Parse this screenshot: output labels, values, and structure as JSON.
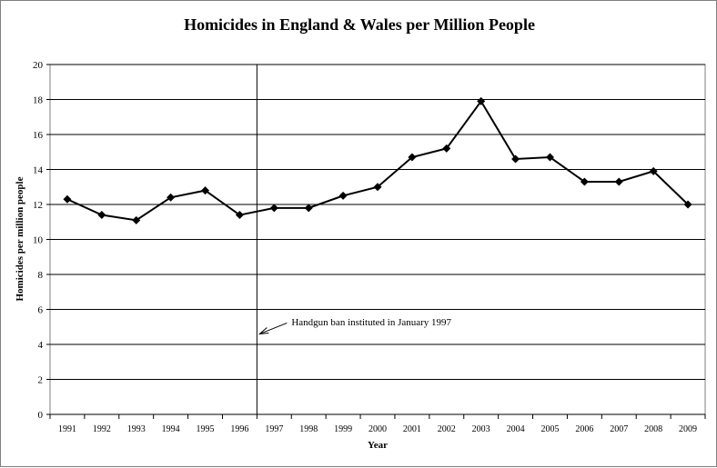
{
  "chart_data": {
    "type": "line",
    "title": "Homicides in England & Wales per Million People",
    "xlabel": "Year",
    "ylabel": "Homicides per million people",
    "categories": [
      "1991",
      "1992",
      "1993",
      "1994",
      "1995",
      "1996",
      "1997",
      "1998",
      "1999",
      "2000",
      "2001",
      "2002",
      "2003",
      "2004",
      "2005",
      "2006",
      "2007",
      "2008",
      "2009"
    ],
    "series": [
      {
        "values": [
          12.3,
          11.4,
          11.1,
          12.4,
          12.8,
          11.4,
          11.8,
          11.8,
          12.5,
          13.0,
          14.7,
          15.2,
          17.9,
          14.6,
          14.7,
          13.3,
          13.3,
          13.9,
          12.0
        ]
      }
    ],
    "ylim": [
      0,
      20
    ],
    "yticks": [
      0,
      2,
      4,
      6,
      8,
      10,
      12,
      14,
      16,
      18,
      20
    ],
    "grid": "horizontal",
    "line_color": "#000000",
    "marker": "diamond",
    "annotation": {
      "text": "Handgun ban instituted in January 1997",
      "marker_between": [
        "1996",
        "1997"
      ]
    }
  }
}
